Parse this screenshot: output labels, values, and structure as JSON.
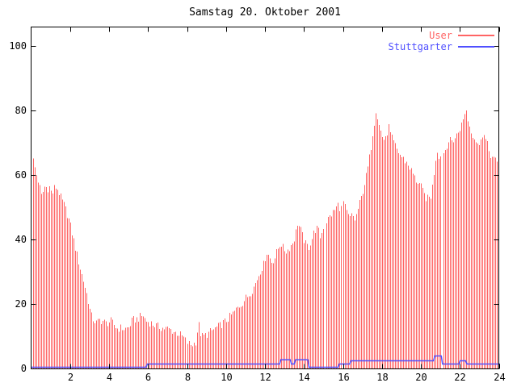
{
  "title": "Samstag 20. Oktober 2001",
  "legend": [
    {
      "label": "User",
      "color": "#ff6464"
    },
    {
      "label": "Stuttgarter",
      "color": "#5050ff"
    }
  ],
  "axes": {
    "x": {
      "ticks": [
        2,
        4,
        6,
        8,
        10,
        12,
        14,
        16,
        18,
        20,
        22,
        24
      ],
      "range": [
        0,
        24
      ]
    },
    "y": {
      "ticks": [
        0,
        20,
        40,
        60,
        80,
        100
      ],
      "range": [
        0,
        106
      ]
    }
  },
  "colors": {
    "bars": "#ff6464",
    "line": "#5050ff",
    "border": "#000000",
    "text": "#000000",
    "background": "#ffffff"
  },
  "chart_data": {
    "type": "bar",
    "title": "Samstag 20. Oktober 2001",
    "xlabel": "",
    "ylabel": "",
    "x_unit": "hour of day",
    "xlim": [
      0,
      24
    ],
    "ylim": [
      0,
      106
    ],
    "grid": false,
    "legend_position": "top-right",
    "sample_interval_minutes": 5,
    "series": [
      {
        "name": "User",
        "style": "impulses",
        "color": "#ff6464",
        "noise_amplitude": 1.3,
        "missing_samples": [
          15.08,
          21.08
        ],
        "envelope_points": [
          [
            0.04,
            65
          ],
          [
            0.12,
            64
          ],
          [
            0.2,
            61
          ],
          [
            0.3,
            59
          ],
          [
            0.42,
            56
          ],
          [
            0.5,
            53.5
          ],
          [
            0.6,
            55
          ],
          [
            0.7,
            57
          ],
          [
            0.8,
            55.5
          ],
          [
            0.9,
            56.5
          ],
          [
            1.05,
            54
          ],
          [
            1.2,
            56.5
          ],
          [
            1.35,
            55.5
          ],
          [
            1.5,
            53
          ],
          [
            1.65,
            51
          ],
          [
            1.8,
            48.5
          ],
          [
            1.95,
            45.5
          ],
          [
            2.1,
            41.5
          ],
          [
            2.3,
            36
          ],
          [
            2.5,
            31
          ],
          [
            2.7,
            26.5
          ],
          [
            2.9,
            21.5
          ],
          [
            3.05,
            16.5
          ],
          [
            3.2,
            15
          ],
          [
            3.35,
            14
          ],
          [
            3.5,
            15
          ],
          [
            3.65,
            14.8
          ],
          [
            3.8,
            14
          ],
          [
            3.95,
            14.3
          ],
          [
            4.1,
            14.6
          ],
          [
            4.25,
            13.5
          ],
          [
            4.4,
            12.4
          ],
          [
            4.6,
            12.6
          ],
          [
            4.8,
            12.2
          ],
          [
            5.0,
            12.7
          ],
          [
            5.2,
            15
          ],
          [
            5.4,
            15.3
          ],
          [
            5.6,
            16
          ],
          [
            5.75,
            16.4
          ],
          [
            5.9,
            14.6
          ],
          [
            6.1,
            14.3
          ],
          [
            6.3,
            13.5
          ],
          [
            6.5,
            13
          ],
          [
            6.7,
            12.6
          ],
          [
            6.9,
            12.4
          ],
          [
            7.1,
            12.2
          ],
          [
            7.3,
            11.5
          ],
          [
            7.5,
            11
          ],
          [
            7.7,
            10.3
          ],
          [
            7.85,
            9.4
          ],
          [
            8.0,
            8
          ],
          [
            8.15,
            7.3
          ],
          [
            8.3,
            7.6
          ],
          [
            8.45,
            8.5
          ],
          [
            8.55,
            14.4
          ],
          [
            8.7,
            9.8
          ],
          [
            8.85,
            10.2
          ],
          [
            9.0,
            10.6
          ],
          [
            9.2,
            11.5
          ],
          [
            9.4,
            12.3
          ],
          [
            9.6,
            13
          ],
          [
            9.8,
            14
          ],
          [
            10.0,
            14.8
          ],
          [
            10.2,
            16.2
          ],
          [
            10.4,
            17.5
          ],
          [
            10.6,
            19
          ],
          [
            10.8,
            20.2
          ],
          [
            11.0,
            21.8
          ],
          [
            11.2,
            23.2
          ],
          [
            11.4,
            25
          ],
          [
            11.6,
            28
          ],
          [
            11.8,
            31
          ],
          [
            11.95,
            32.5
          ],
          [
            12.05,
            36.3
          ],
          [
            12.2,
            34.8
          ],
          [
            12.35,
            33
          ],
          [
            12.5,
            34.4
          ],
          [
            12.65,
            37
          ],
          [
            12.8,
            39
          ],
          [
            12.95,
            37
          ],
          [
            13.1,
            36.3
          ],
          [
            13.25,
            37.5
          ],
          [
            13.4,
            38.8
          ],
          [
            13.55,
            41
          ],
          [
            13.65,
            45.2
          ],
          [
            13.8,
            43.5
          ],
          [
            13.95,
            40.5
          ],
          [
            14.1,
            38.3
          ],
          [
            14.25,
            37.7
          ],
          [
            14.4,
            40
          ],
          [
            14.55,
            43
          ],
          [
            14.7,
            43.4
          ],
          [
            14.85,
            40.5
          ],
          [
            15.0,
            44
          ],
          [
            15.15,
            45.5
          ],
          [
            15.3,
            46.8
          ],
          [
            15.45,
            48
          ],
          [
            15.6,
            49.3
          ],
          [
            15.75,
            50.8
          ],
          [
            15.9,
            49.3
          ],
          [
            16.0,
            51.5
          ],
          [
            16.15,
            48.5
          ],
          [
            16.3,
            46.5
          ],
          [
            16.45,
            47.5
          ],
          [
            16.6,
            46
          ],
          [
            16.75,
            49.5
          ],
          [
            16.9,
            52.5
          ],
          [
            17.05,
            56.5
          ],
          [
            17.2,
            60.5
          ],
          [
            17.3,
            64
          ],
          [
            17.4,
            68
          ],
          [
            17.5,
            73
          ],
          [
            17.6,
            77
          ],
          [
            17.68,
            81
          ],
          [
            17.78,
            76.5
          ],
          [
            17.9,
            74
          ],
          [
            18.0,
            72
          ],
          [
            18.1,
            71
          ],
          [
            18.2,
            70.7
          ],
          [
            18.3,
            75.8
          ],
          [
            18.42,
            72.5
          ],
          [
            18.55,
            70.5
          ],
          [
            18.7,
            68.5
          ],
          [
            18.85,
            66.8
          ],
          [
            19.0,
            65.5
          ],
          [
            19.15,
            64.5
          ],
          [
            19.3,
            63.5
          ],
          [
            19.45,
            62
          ],
          [
            19.6,
            60
          ],
          [
            19.75,
            58.3
          ],
          [
            19.9,
            57.5
          ],
          [
            20.05,
            55.5
          ],
          [
            20.2,
            53.2
          ],
          [
            20.35,
            52.6
          ],
          [
            20.5,
            53.5
          ],
          [
            20.6,
            57
          ],
          [
            20.7,
            62.5
          ],
          [
            20.8,
            68
          ],
          [
            20.95,
            65.5
          ],
          [
            21.1,
            66
          ],
          [
            21.25,
            68
          ],
          [
            21.4,
            70.5
          ],
          [
            21.55,
            70.5
          ],
          [
            21.7,
            71
          ],
          [
            21.85,
            72.5
          ],
          [
            22.0,
            74.5
          ],
          [
            22.15,
            76.5
          ],
          [
            22.3,
            81
          ],
          [
            22.45,
            76
          ],
          [
            22.6,
            73.5
          ],
          [
            22.75,
            71.5
          ],
          [
            22.9,
            70
          ],
          [
            23.0,
            68.5
          ],
          [
            23.1,
            72.5
          ],
          [
            23.2,
            73
          ],
          [
            23.35,
            70.5
          ],
          [
            23.5,
            67.5
          ],
          [
            23.65,
            65.5
          ],
          [
            23.8,
            64.5
          ],
          [
            24.0,
            63.5
          ]
        ]
      },
      {
        "name": "Stuttgarter",
        "style": "steps",
        "color": "#5050ff",
        "step_points": [
          [
            0,
            0
          ],
          [
            5.9,
            1
          ],
          [
            12.75,
            2.3
          ],
          [
            13.3,
            1
          ],
          [
            13.5,
            2.3
          ],
          [
            14.2,
            0
          ],
          [
            15.75,
            1
          ],
          [
            16.35,
            2
          ],
          [
            20.65,
            3.5
          ],
          [
            21.05,
            1
          ],
          [
            21.95,
            2
          ],
          [
            22.3,
            1
          ],
          [
            24,
            1
          ]
        ]
      }
    ]
  }
}
